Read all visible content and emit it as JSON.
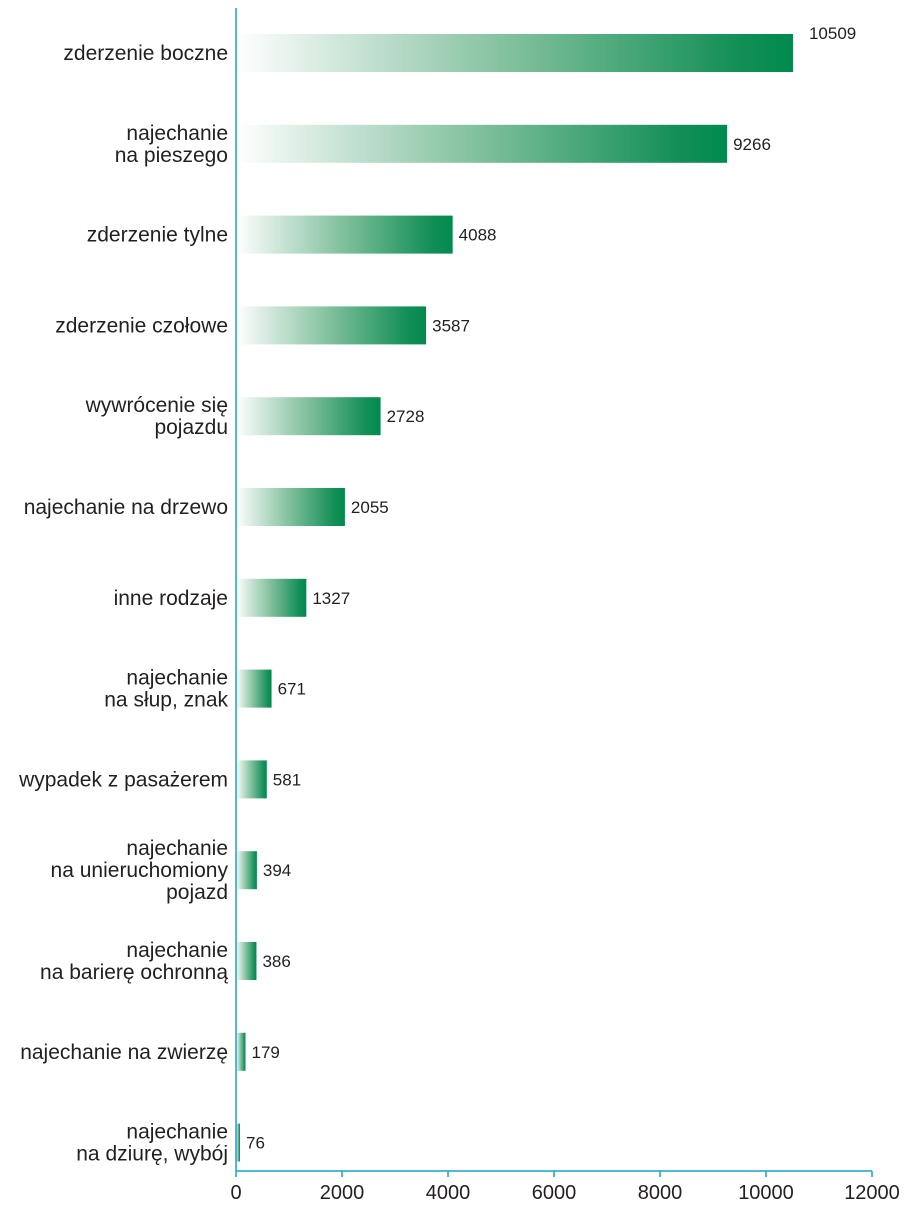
{
  "chart_data": {
    "type": "bar",
    "orientation": "horizontal",
    "categories": [
      [
        "zderzenie boczne"
      ],
      [
        "najechanie",
        "na pieszego"
      ],
      [
        "zderzenie tylne"
      ],
      [
        "zderzenie czołowe"
      ],
      [
        "wywrócenie się",
        "pojazdu"
      ],
      [
        "najechanie na drzewo"
      ],
      [
        "inne rodzaje"
      ],
      [
        "najechanie",
        "na słup, znak"
      ],
      [
        "wypadek z pasażerem"
      ],
      [
        "najechanie",
        "na unieruchomiony",
        "pojazd"
      ],
      [
        "najechanie",
        "na barierę ochronną"
      ],
      [
        "najechanie na zwierzę"
      ],
      [
        "najechanie",
        "na dziurę, wybój"
      ]
    ],
    "values": [
      10509,
      9266,
      4088,
      3587,
      2728,
      2055,
      1327,
      671,
      581,
      394,
      386,
      179,
      76
    ],
    "value_labels": [
      "10509",
      "9266",
      "4088",
      "3587",
      "2728",
      "2055",
      "1327",
      "671",
      "581",
      "394",
      "386",
      "179",
      "76"
    ],
    "xlim": [
      0,
      12000
    ],
    "xticks": [
      0,
      2000,
      4000,
      6000,
      8000,
      10000,
      12000
    ],
    "xtick_labels": [
      "0",
      "2000",
      "4000",
      "6000",
      "8000",
      "10000",
      "12000"
    ],
    "title": "",
    "xlabel": "",
    "ylabel": "",
    "grid": false,
    "legend": "none",
    "colors": {
      "bar_end": "#008a4e",
      "bar_start": "#ffffff",
      "axis": "#1aa0c8",
      "text": "#231f20"
    }
  }
}
